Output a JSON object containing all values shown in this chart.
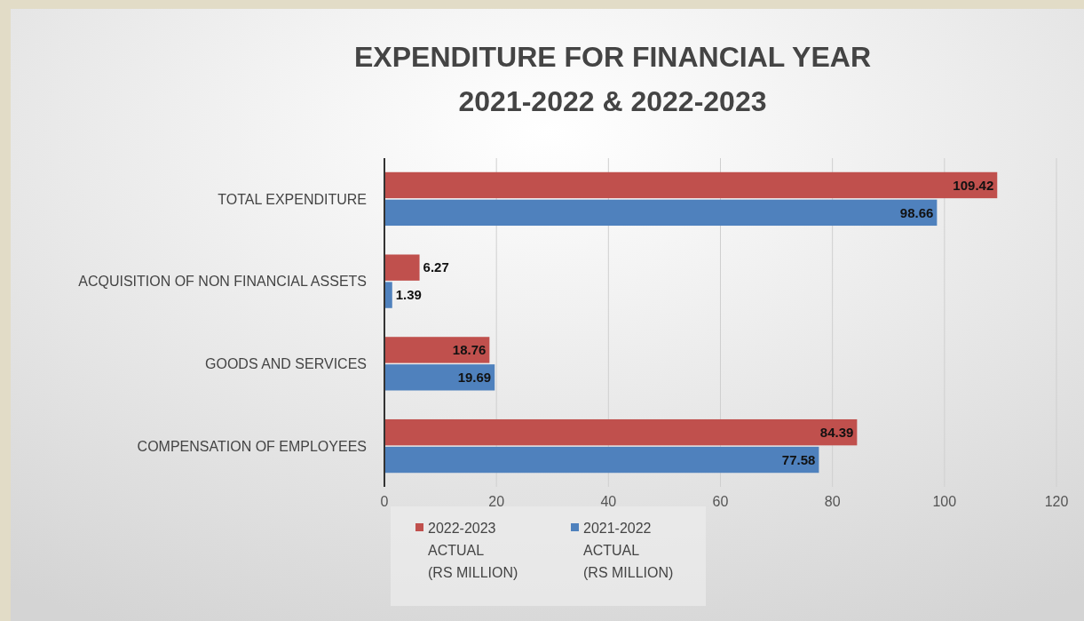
{
  "chart_data": {
    "type": "bar",
    "orientation": "horizontal",
    "title": "EXPENDITURE FOR FINANCIAL YEAR 2021-2022 & 2022-2023",
    "categories": [
      "TOTAL EXPENDITURE",
      "ACQUISITION OF NON FINANCIAL ASSETS",
      "GOODS AND SERVICES",
      "COMPENSATION OF EMPLOYEES"
    ],
    "series": [
      {
        "name": "2022-2023 ACTUAL (RS MILLION)",
        "color": "#c0504d",
        "values": [
          109.42,
          6.27,
          18.76,
          84.39
        ]
      },
      {
        "name": "2021-2022 ACTUAL (RS MILLION)",
        "color": "#4f81bd",
        "values": [
          98.66,
          1.39,
          19.69,
          77.58
        ]
      }
    ],
    "xlim": [
      0,
      120
    ],
    "xticks": [
      0,
      20,
      40,
      60,
      80,
      100,
      120
    ],
    "grid": "x",
    "legend": "bottom",
    "data_labels": true
  }
}
